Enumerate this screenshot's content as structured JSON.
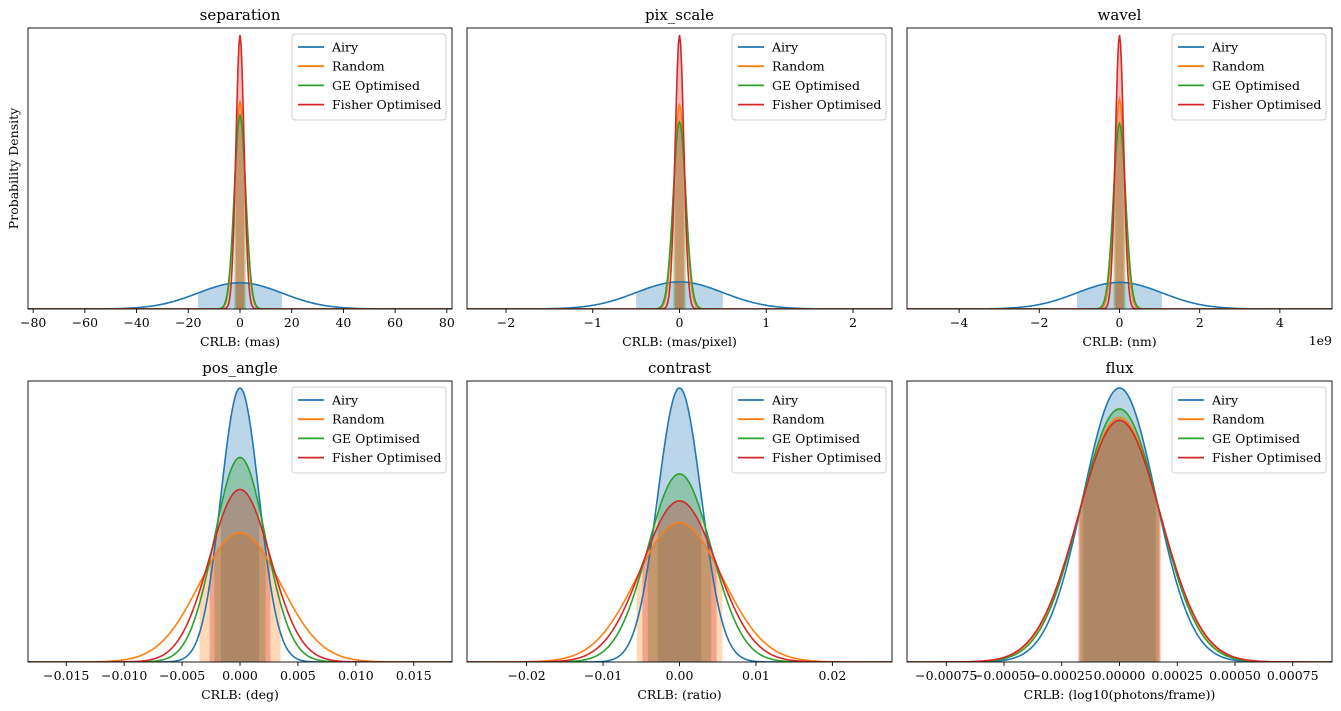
{
  "figure": {
    "legend_entries": [
      "Airy",
      "Random",
      "GE Optimised",
      "Fisher Optimised"
    ],
    "colors": {
      "Airy": "#1f77b4",
      "Random": "#ff7f0e",
      "GE Optimised": "#2ca02c",
      "Fisher Optimised": "#d62728"
    },
    "shared_ylabel": "Probability Density"
  },
  "chart_data": [
    {
      "type": "line",
      "title": "separation",
      "xlabel": "CRLB: (mas)",
      "xlim": [
        -82,
        82
      ],
      "xticks": [
        -80,
        -60,
        -40,
        -20,
        0,
        20,
        40,
        60,
        80
      ],
      "xticklabels": [
        "−80",
        "−60",
        "−40",
        "−20",
        "0",
        "20",
        "40",
        "60",
        "80"
      ],
      "offset_text": "",
      "ylabel": "Probability Density",
      "legend": "top-right",
      "grid": false,
      "series": [
        {
          "name": "Airy",
          "sigma": 16.3,
          "peak": 0.0245
        },
        {
          "name": "Random",
          "sigma": 2.07,
          "peak": 0.193
        },
        {
          "name": "GE Optimised",
          "sigma": 2.2,
          "peak": 0.181
        },
        {
          "name": "Fisher Optimised",
          "sigma": 1.56,
          "peak": 0.256
        }
      ]
    },
    {
      "type": "line",
      "title": "pix_scale",
      "xlabel": "CRLB: (mas/pixel)",
      "xlim": [
        -2.45,
        2.45
      ],
      "xticks": [
        -2,
        -1,
        0,
        1,
        2
      ],
      "xticklabels": [
        "−2",
        "−1",
        "0",
        "1",
        "2"
      ],
      "offset_text": "",
      "legend": "top-right",
      "grid": false,
      "series": [
        {
          "name": "Airy",
          "sigma": 0.5,
          "peak": 0.798
        },
        {
          "name": "Random",
          "sigma": 0.0665,
          "peak": 6.0
        },
        {
          "name": "GE Optimised",
          "sigma": 0.0725,
          "peak": 5.5
        },
        {
          "name": "Fisher Optimised",
          "sigma": 0.0495,
          "peak": 8.06
        }
      ]
    },
    {
      "type": "line",
      "title": "wavel",
      "xlabel": "CRLB: (nm)",
      "xlim": [
        -5.3,
        5.3
      ],
      "xticks": [
        -4,
        -2,
        0,
        2,
        4
      ],
      "xticklabels": [
        "−4",
        "−2",
        "0",
        "2",
        "4"
      ],
      "offset_text": "1e9",
      "legend": "top-right",
      "grid": false,
      "series": [
        {
          "name": "Airy",
          "sigma": 1.06,
          "peak": 0.376
        },
        {
          "name": "Random",
          "sigma": 0.135,
          "peak": 2.96
        },
        {
          "name": "GE Optimised",
          "sigma": 0.152,
          "peak": 2.62
        },
        {
          "name": "Fisher Optimised",
          "sigma": 0.103,
          "peak": 3.87
        }
      ]
    },
    {
      "type": "line",
      "title": "pos_angle",
      "xlabel": "CRLB: (deg)",
      "xlim": [
        -0.0183,
        0.0183
      ],
      "xticks": [
        -0.015,
        -0.01,
        -0.005,
        0,
        0.005,
        0.01,
        0.015
      ],
      "xticklabels": [
        "−0.015",
        "−0.010",
        "−0.005",
        "0.000",
        "0.005",
        "0.010",
        "0.015"
      ],
      "offset_text": "",
      "ylabel": "",
      "legend": "top-right",
      "grid": false,
      "series": [
        {
          "name": "Airy",
          "sigma": 0.00165,
          "peak": 241.8
        },
        {
          "name": "Random",
          "sigma": 0.0035,
          "peak": 114.0
        },
        {
          "name": "GE Optimised",
          "sigma": 0.00221,
          "peak": 180.5
        },
        {
          "name": "Fisher Optimised",
          "sigma": 0.00262,
          "peak": 152.3
        }
      ]
    },
    {
      "type": "line",
      "title": "contrast",
      "xlabel": "CRLB: (ratio)",
      "xlim": [
        -0.0278,
        0.0278
      ],
      "xticks": [
        -0.02,
        -0.01,
        0,
        0.01,
        0.02
      ],
      "xticklabels": [
        "−0.02",
        "−0.01",
        "0.00",
        "0.01",
        "0.02"
      ],
      "offset_text": "",
      "legend": "top-right",
      "grid": false,
      "series": [
        {
          "name": "Airy",
          "sigma": 0.00285,
          "peak": 140.0
        },
        {
          "name": "Random",
          "sigma": 0.0056,
          "peak": 71.2
        },
        {
          "name": "GE Optimised",
          "sigma": 0.00415,
          "peak": 96.1
        },
        {
          "name": "Fisher Optimised",
          "sigma": 0.00485,
          "peak": 82.3
        }
      ]
    },
    {
      "type": "line",
      "title": "flux",
      "xlabel": "CRLB: (log10(photons/frame))",
      "xlim": [
        -0.00092,
        0.00092
      ],
      "xticks": [
        -0.00075,
        -0.0005,
        -0.00025,
        0,
        0.00025,
        0.0005,
        0.00075
      ],
      "xticklabels": [
        "−0.00075",
        "−0.00050",
        "−0.00025",
        "0.00000",
        "0.00025",
        "0.00050",
        "0.00075"
      ],
      "offset_text": "",
      "legend": "top-right",
      "grid": false,
      "series": [
        {
          "name": "Airy",
          "sigma": 0.000157,
          "peak": 2541
        },
        {
          "name": "Random",
          "sigma": 0.000176,
          "peak": 2267
        },
        {
          "name": "GE Optimised",
          "sigma": 0.00017,
          "peak": 2347
        },
        {
          "name": "Fisher Optimised",
          "sigma": 0.000178,
          "peak": 2241
        }
      ]
    }
  ]
}
